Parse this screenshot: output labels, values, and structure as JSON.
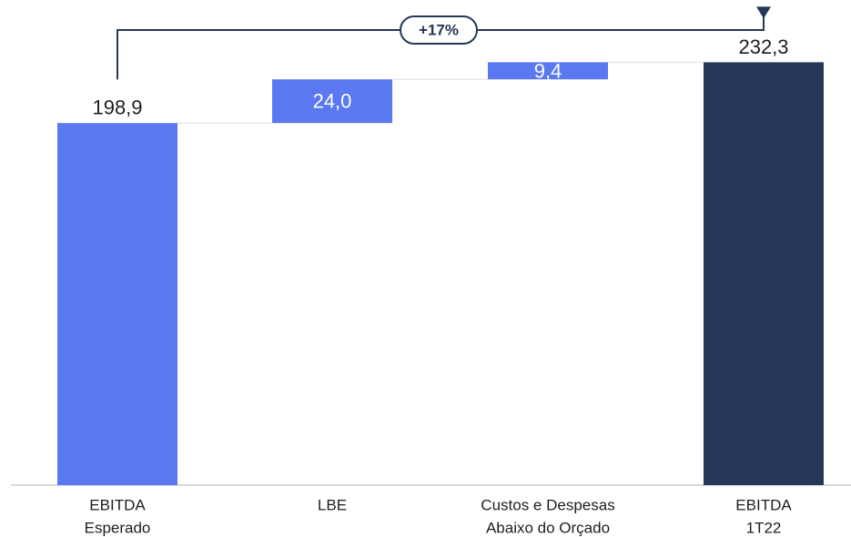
{
  "chart_data": {
    "type": "bar",
    "subtype": "waterfall",
    "categories": [
      [
        "EBITDA",
        "Esperado"
      ],
      [
        "LBE"
      ],
      [
        "Custos e Despesas",
        "Abaixo do Orçado"
      ],
      [
        "EBITDA",
        "1T22"
      ]
    ],
    "values": [
      198.9,
      24.0,
      9.4,
      232.3
    ],
    "value_labels": [
      "198,9",
      "24,0",
      "9,4",
      "232,3"
    ],
    "kinds": [
      "total",
      "increase",
      "increase",
      "total"
    ],
    "ylim": [
      0,
      232.3
    ],
    "grid": false,
    "annotation": {
      "text": "+17%",
      "from_category": 0,
      "to_category": 3
    }
  },
  "colors": {
    "initial_total": "#5a78f0",
    "increase": "#5a78f0",
    "final_total": "#243759",
    "connector": "#dedede",
    "axis": "#b3b3b3",
    "annotation": "#243759"
  }
}
